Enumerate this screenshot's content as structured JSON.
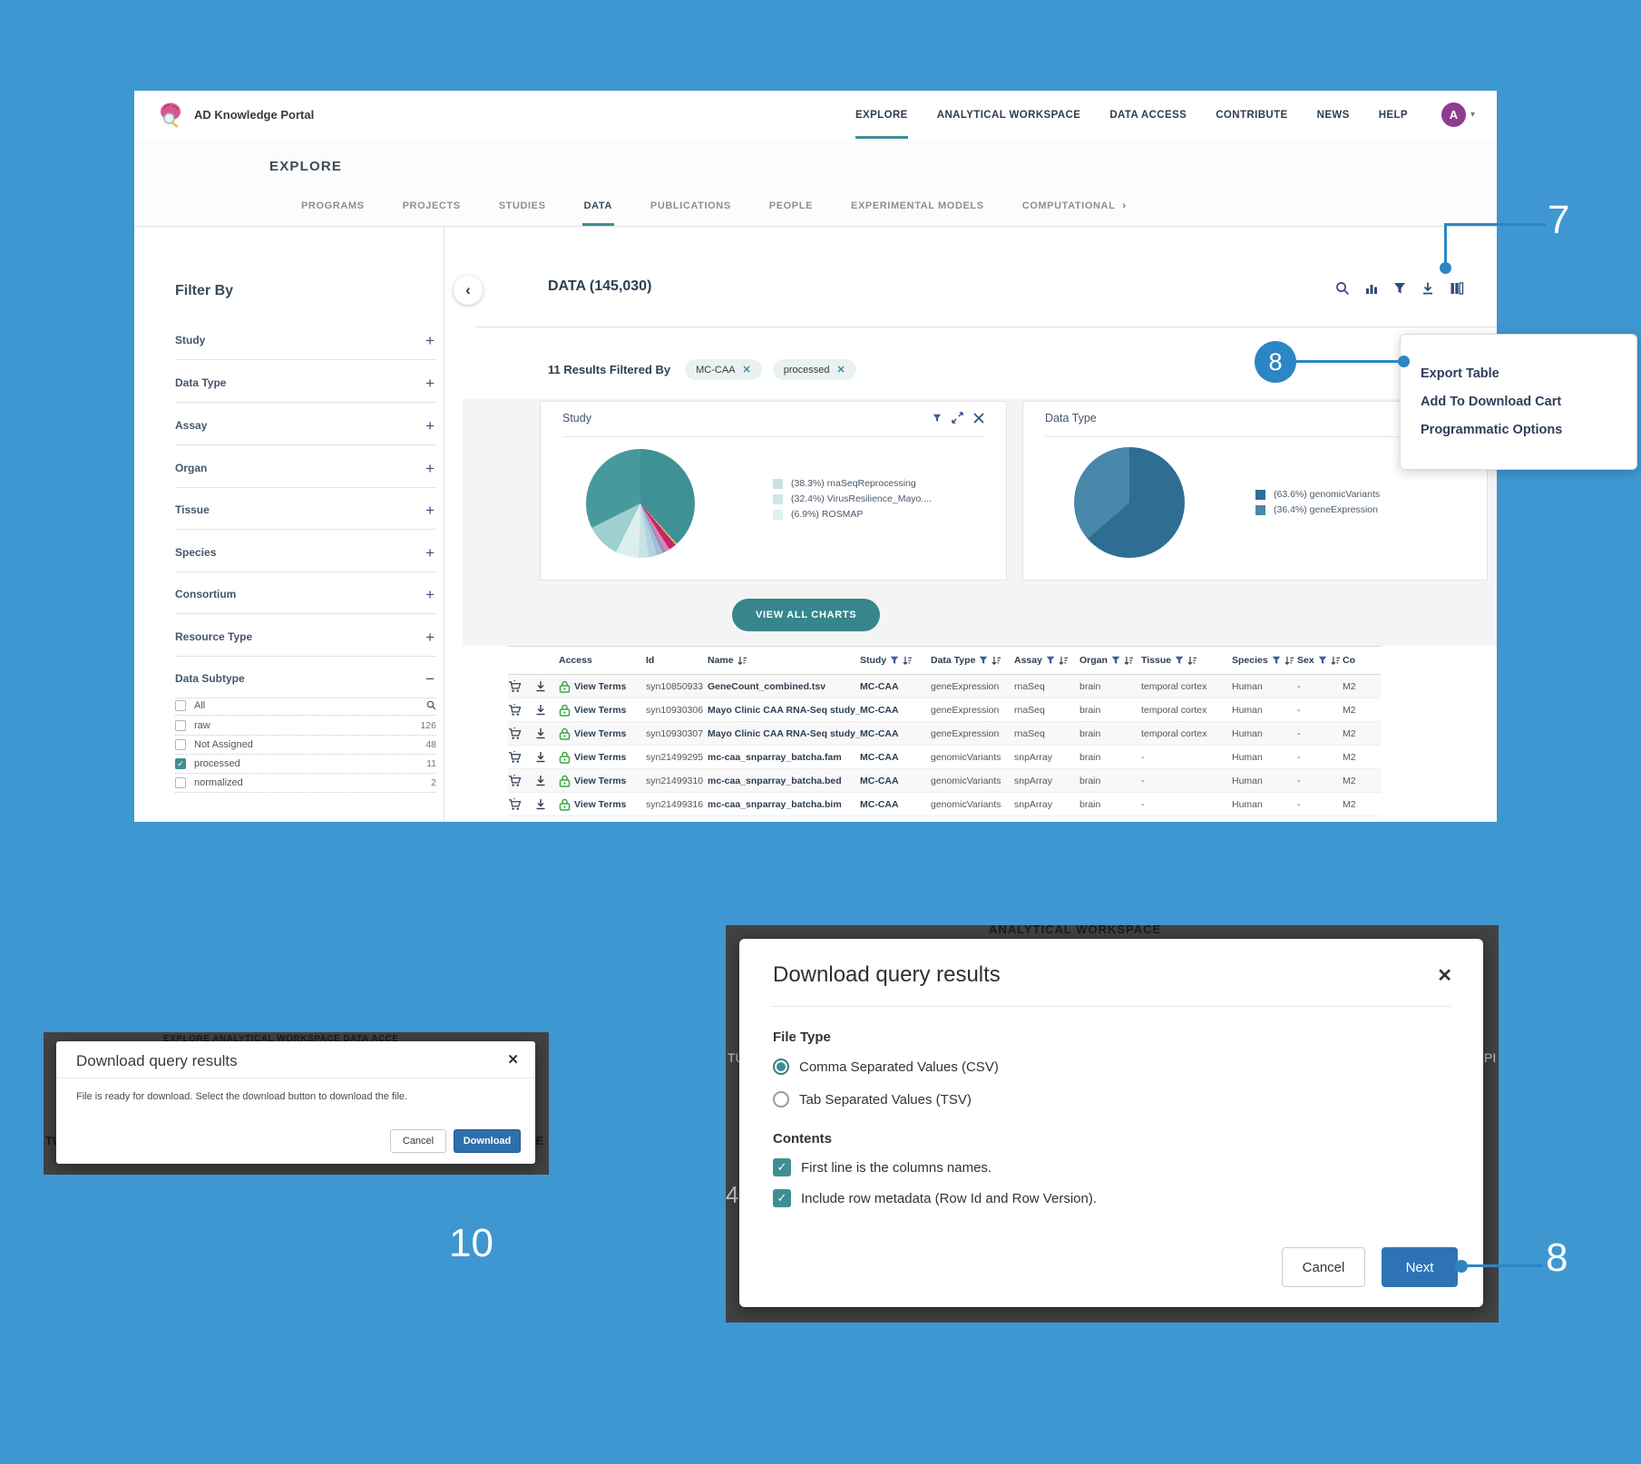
{
  "annotations": {
    "step7": "7",
    "step8": "8",
    "step10": "10"
  },
  "colors": {
    "background_blue": "#3E97D1",
    "annotation_blue": "#2B86C5",
    "accent_teal": "#3F8E95",
    "primary_button_blue": "#2E74B5",
    "navy_text": "#2D3E50"
  },
  "header": {
    "brand": "AD Knowledge Portal",
    "nav_items": [
      {
        "label": "EXPLORE",
        "active": true
      },
      {
        "label": "ANALYTICAL WORKSPACE",
        "active": false
      },
      {
        "label": "DATA ACCESS",
        "active": false
      },
      {
        "label": "CONTRIBUTE",
        "active": false
      },
      {
        "label": "NEWS",
        "active": false
      },
      {
        "label": "HELP",
        "active": false
      }
    ],
    "avatar_initial": "A"
  },
  "explore": {
    "title": "EXPLORE",
    "tabs": [
      {
        "label": "PROGRAMS",
        "active": false
      },
      {
        "label": "PROJECTS",
        "active": false
      },
      {
        "label": "STUDIES",
        "active": false
      },
      {
        "label": "DATA",
        "active": true
      },
      {
        "label": "PUBLICATIONS",
        "active": false
      },
      {
        "label": "PEOPLE",
        "active": false
      },
      {
        "label": "EXPERIMENTAL MODELS",
        "active": false
      },
      {
        "label": "COMPUTATIONAL",
        "active": false,
        "chevron": true
      }
    ]
  },
  "sidebar": {
    "title": "Filter By",
    "sections": [
      "Study",
      "Data Type",
      "Assay",
      "Organ",
      "Tissue",
      "Species",
      "Consortium",
      "Resource Type"
    ],
    "subtype": {
      "label": "Data Subtype",
      "options": [
        {
          "label": "All",
          "count": "",
          "checked": false,
          "search": true
        },
        {
          "label": "raw",
          "count": "126",
          "checked": false
        },
        {
          "label": "Not Assigned",
          "count": "48",
          "checked": false
        },
        {
          "label": "processed",
          "count": "11",
          "checked": true
        },
        {
          "label": "normalized",
          "count": "2",
          "checked": false
        }
      ]
    }
  },
  "main": {
    "heading": "DATA (145,030)",
    "toolbar_icons": [
      "search-icon",
      "bar-chart-icon",
      "filter-icon",
      "download-icon",
      "columns-icon"
    ],
    "results_label": "11 Results Filtered By",
    "chips": [
      "MC-CAA",
      "processed"
    ],
    "view_all_button": "VIEW ALL CHARTS"
  },
  "chart_data": [
    {
      "type": "pie",
      "title": "Study",
      "legend": [
        {
          "swatch": "#C9E2E4",
          "label": "(38.3%) rnaSeqReprocessing"
        },
        {
          "swatch": "#CFE6E8",
          "label": "(32.4%) VirusResilience_Mayo...."
        },
        {
          "swatch": "#DDF0F0",
          "label": "(6.9%) ROSMAP"
        }
      ],
      "slices": [
        {
          "label": "rnaSeqReprocessing",
          "value": 38.3,
          "color": "#3E9296"
        },
        {
          "label": "other",
          "value": 0.5,
          "color": "#E9C94F"
        },
        {
          "label": "other",
          "value": 2.2,
          "color": "#C2266D"
        },
        {
          "label": "other",
          "value": 1.3,
          "color": "#DB86AE"
        },
        {
          "label": "other",
          "value": 1.0,
          "color": "#9A8CBE"
        },
        {
          "label": "other",
          "value": 1.8,
          "color": "#9FBFD8"
        },
        {
          "label": "other",
          "value": 2.4,
          "color": "#B3D4DF"
        },
        {
          "label": "other",
          "value": 3.0,
          "color": "#C8E2E6"
        },
        {
          "label": "ROSMAP",
          "value": 6.9,
          "color": "#DCEFEF"
        },
        {
          "label": "other",
          "value": 10.2,
          "color": "#9ED0D0"
        },
        {
          "label": "VirusResilience_Mayo....",
          "value": 32.4,
          "color": "#47999D"
        }
      ]
    },
    {
      "type": "pie",
      "title": "Data Type",
      "legend": [
        {
          "swatch": "#2E6E92",
          "label": "(63.6%) genomicVariants"
        },
        {
          "swatch": "#4987AB",
          "label": "(36.4%) geneExpression"
        }
      ],
      "slices": [
        {
          "label": "genomicVariants",
          "value": 63.6,
          "color": "#2E6E92"
        },
        {
          "label": "geneExpression",
          "value": 36.4,
          "color": "#4987AB"
        }
      ]
    }
  ],
  "table": {
    "link_label": "View Terms",
    "columns": [
      {
        "label": "",
        "filter": false,
        "sort": false
      },
      {
        "label": "",
        "filter": false,
        "sort": false
      },
      {
        "label": "Access",
        "filter": false,
        "sort": false
      },
      {
        "label": "Id",
        "filter": false,
        "sort": false
      },
      {
        "label": "Name",
        "filter": false,
        "sort": true
      },
      {
        "label": "Study",
        "filter": true,
        "sort": true
      },
      {
        "label": "Data Type",
        "filter": true,
        "sort": true
      },
      {
        "label": "Assay",
        "filter": true,
        "sort": true
      },
      {
        "label": "Organ",
        "filter": true,
        "sort": true
      },
      {
        "label": "Tissue",
        "filter": true,
        "sort": true
      },
      {
        "label": "Species",
        "filter": true,
        "sort": true
      },
      {
        "label": "Sex",
        "filter": true,
        "sort": true
      },
      {
        "label": "Co",
        "filter": false,
        "sort": false
      }
    ],
    "rows": [
      {
        "id": "syn10850933",
        "name": "GeneCount_combined.tsv",
        "study": "MC-CAA",
        "data_type": "geneExpression",
        "assay": "rnaSeq",
        "organ": "brain",
        "tissue": "temporal cortex",
        "species": "Human",
        "sex": "-",
        "co": "M2"
      },
      {
        "id": "syn10930306",
        "name": "Mayo Clinic CAA RNA-Seq study_...",
        "study": "MC-CAA",
        "data_type": "geneExpression",
        "assay": "rnaSeq",
        "organ": "brain",
        "tissue": "temporal cortex",
        "species": "Human",
        "sex": "-",
        "co": "M2"
      },
      {
        "id": "syn10930307",
        "name": "Mayo Clinic CAA RNA-Seq study_...",
        "study": "MC-CAA",
        "data_type": "geneExpression",
        "assay": "rnaSeq",
        "organ": "brain",
        "tissue": "temporal cortex",
        "species": "Human",
        "sex": "-",
        "co": "M2"
      },
      {
        "id": "syn21499295",
        "name": "mc-caa_snparray_batcha.fam",
        "study": "MC-CAA",
        "data_type": "genomicVariants",
        "assay": "snpArray",
        "organ": "brain",
        "tissue": "-",
        "species": "Human",
        "sex": "-",
        "co": "M2"
      },
      {
        "id": "syn21499310",
        "name": "mc-caa_snparray_batcha.bed",
        "study": "MC-CAA",
        "data_type": "genomicVariants",
        "assay": "snpArray",
        "organ": "brain",
        "tissue": "-",
        "species": "Human",
        "sex": "-",
        "co": "M2"
      },
      {
        "id": "syn21499316",
        "name": "mc-caa_snparray_batcha.bim",
        "study": "MC-CAA",
        "data_type": "genomicVariants",
        "assay": "snpArray",
        "organ": "brain",
        "tissue": "-",
        "species": "Human",
        "sex": "-",
        "co": "M2"
      }
    ]
  },
  "export_menu": {
    "items": [
      "Export Table",
      "Add To Download Cart",
      "Programmatic Options"
    ]
  },
  "download_dialog_small": {
    "title": "Download query results",
    "body": "File is ready for download. Select the download button to download the file.",
    "cancel_label": "Cancel",
    "download_label": "Download",
    "ghost_nav": "EXPLORE          ANALYTICAL WORKSPACE          DATA ACCE",
    "ghost_left": "TU",
    "ghost_right": "PE"
  },
  "download_dialog_large": {
    "title": "Download query results",
    "file_type_label": "File Type",
    "radio_csv": "Comma Separated Values (CSV)",
    "radio_tsv": "Tab Separated Values (TSV)",
    "contents_label": "Contents",
    "check1": "First line is the columns names.",
    "check2": "Include row metadata (Row Id and Row Version).",
    "cancel_label": "Cancel",
    "next_label": "Next",
    "ghost_nav": "ANALYTICAL WORKSPACE",
    "ghost_left": "TU",
    "ghost_right": "PI",
    "ghost_num": "4"
  }
}
